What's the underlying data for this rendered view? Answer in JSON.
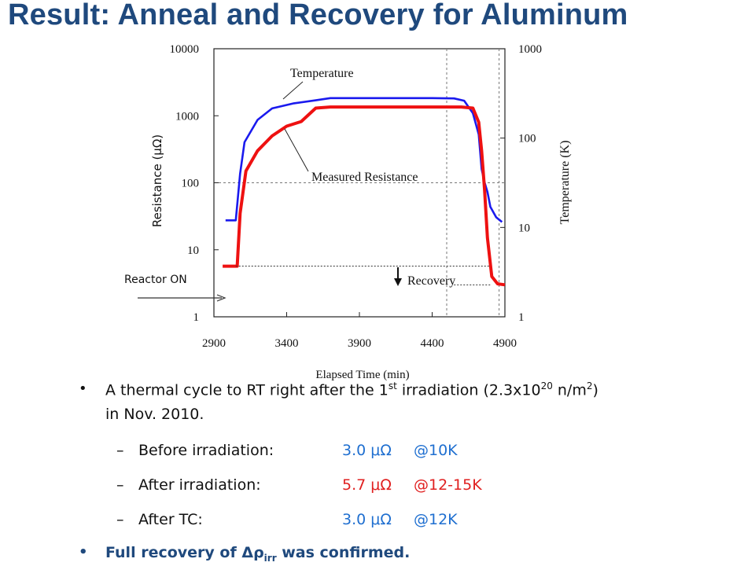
{
  "slide": {
    "title": "Result: Anneal and Recovery for Aluminum"
  },
  "chart_data": {
    "type": "line",
    "xlabel": "Elapsed Time (min)",
    "ylabel_left": "Resistance (μΩ)",
    "ylabel_right": "Temperature (K)",
    "x_ticks": [
      "2900",
      "3400",
      "3900",
      "4400",
      "4900"
    ],
    "y_left_ticks": [
      "10000",
      "1000",
      "100",
      "10",
      "1"
    ],
    "y_right_ticks": [
      "1000",
      "100",
      "10",
      "1"
    ],
    "xlim": [
      2900,
      4900
    ],
    "ylim_left": [
      1,
      10000
    ],
    "ylim_right": [
      1,
      1000
    ],
    "y_scale": "log",
    "grid": "dotted reference lines at x=4500, x=4860 and resistance=100",
    "annotations": {
      "temperature": "Temperature",
      "resistance": "Measured Resistance",
      "recovery": "Recovery",
      "reactor_on": "Reactor ON"
    },
    "series": [
      {
        "name": "Temperature",
        "axis": "right",
        "color": "#1a1aee",
        "x": [
          2980,
          3010,
          3050,
          3080,
          3110,
          3200,
          3300,
          3450,
          3600,
          3700,
          3800,
          3900,
          4000,
          4200,
          4400,
          4550,
          4620,
          4680,
          4720,
          4740,
          4760,
          4780,
          4800,
          4840,
          4880
        ],
        "y": [
          12,
          12,
          12,
          40,
          90,
          160,
          215,
          245,
          265,
          280,
          280,
          280,
          280,
          280,
          280,
          278,
          262,
          190,
          110,
          45,
          32,
          25,
          17,
          13,
          11.5
        ]
      },
      {
        "name": "Measured Resistance",
        "axis": "left",
        "color": "#ee1111",
        "x": [
          2960,
          3000,
          3060,
          3080,
          3120,
          3200,
          3300,
          3400,
          3500,
          3600,
          3700,
          3800,
          4000,
          4200,
          4400,
          4600,
          4680,
          4720,
          4740,
          4760,
          4780,
          4810,
          4850,
          4900
        ],
        "y": [
          5.7,
          5.7,
          5.7,
          35,
          150,
          300,
          500,
          700,
          820,
          1300,
          1350,
          1350,
          1350,
          1350,
          1350,
          1350,
          1300,
          800,
          300,
          80,
          15,
          4,
          3.1,
          3.0
        ]
      }
    ]
  },
  "bullets": [
    {
      "kind": "main",
      "line1_before": "A thermal cycle to RT right after the 1",
      "line1_sup": "st",
      "line1_mid": " irradiation (2.3x10",
      "line1_sup2": "20",
      "line1_mid2": " n/m",
      "line1_sup3": "2",
      "line1_end": ")",
      "line2": "in Nov. 2010."
    },
    {
      "kind": "sub",
      "label": "Before irradiation:",
      "value": "3.0 μΩ",
      "cond": "@10K"
    },
    {
      "kind": "sub",
      "label": "After irradiation:",
      "value": "5.7 μΩ",
      "cond": "@12-15K"
    },
    {
      "kind": "sub",
      "label": "After TC:",
      "value": "3.0 μΩ",
      "cond": "@12K"
    },
    {
      "kind": "main",
      "text_before": "Full recovery of ",
      "symbol": "Δρ",
      "sub": "irr",
      "text_after": " was confirmed."
    }
  ],
  "colors": {
    "title": "#1f497d",
    "blue_value": "#1f6fd0",
    "red_value": "#e02020",
    "temperature_line": "#1a1aee",
    "resistance_line": "#ee1111"
  }
}
